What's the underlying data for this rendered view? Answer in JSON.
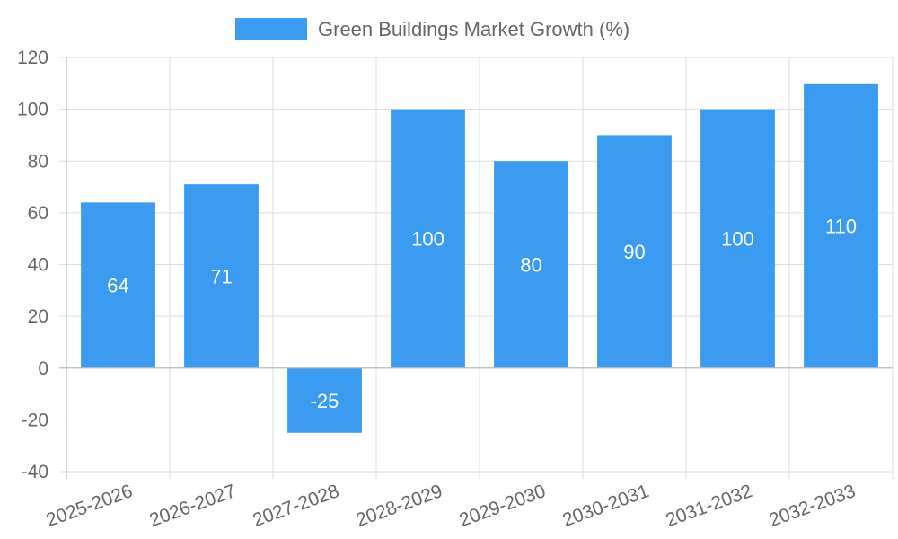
{
  "chart_data": {
    "type": "bar",
    "categories": [
      "2025-2026",
      "2026-2027",
      "2027-2028",
      "2028-2029",
      "2029-2030",
      "2030-2031",
      "2031-2032",
      "2032-2033"
    ],
    "series": [
      {
        "name": "Green Buildings Market Growth (%)",
        "values": [
          64,
          71,
          -25,
          100,
          80,
          90,
          100,
          110
        ],
        "color": "#3a9bf0"
      }
    ],
    "ylim": [
      -40,
      120
    ],
    "yticks": [
      -40,
      -20,
      0,
      20,
      40,
      60,
      80,
      100,
      120
    ],
    "legend_position": "top",
    "grid": true,
    "data_labels": true
  }
}
